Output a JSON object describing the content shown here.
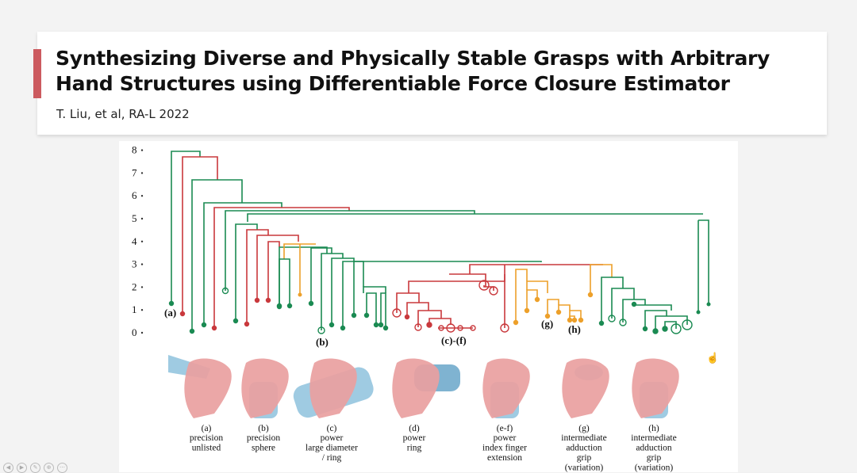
{
  "slide": {
    "title_line1": "Synthesizing Diverse and Physically Stable Grasps with Arbitrary",
    "title_line2": "Hand Structures using Differentiable Force Closure Estimator",
    "citation": "T. Liu, et al, RA-L 2022",
    "accent_color": "#cc5a5f"
  },
  "tree": {
    "y_ticks": [
      "0",
      "1",
      "2",
      "3",
      "4",
      "5",
      "6",
      "7",
      "8"
    ],
    "group_labels": [
      "(a)",
      "(b)",
      "(c)-(f)",
      "(g)",
      "(h)"
    ],
    "colors": {
      "green": "#1a8a52",
      "red": "#c9383c",
      "orange": "#eda02a"
    }
  },
  "grasps": [
    {
      "label": "(a)",
      "lines": [
        "precision",
        "unlisted"
      ]
    },
    {
      "label": "(b)",
      "lines": [
        "precision",
        "sphere"
      ]
    },
    {
      "label": "(c)",
      "lines": [
        "power",
        "large diameter",
        "/ ring"
      ]
    },
    {
      "label": "(d)",
      "lines": [
        "power",
        "ring"
      ]
    },
    {
      "label": "(e-f)",
      "lines": [
        "power",
        "index finger",
        "extension"
      ]
    },
    {
      "label": "(g)",
      "lines": [
        "intermediate",
        "adduction",
        "grip",
        "(variation)"
      ]
    },
    {
      "label": "(h)",
      "lines": [
        "intermediate",
        "adduction",
        "grip",
        "(variation)"
      ]
    }
  ]
}
